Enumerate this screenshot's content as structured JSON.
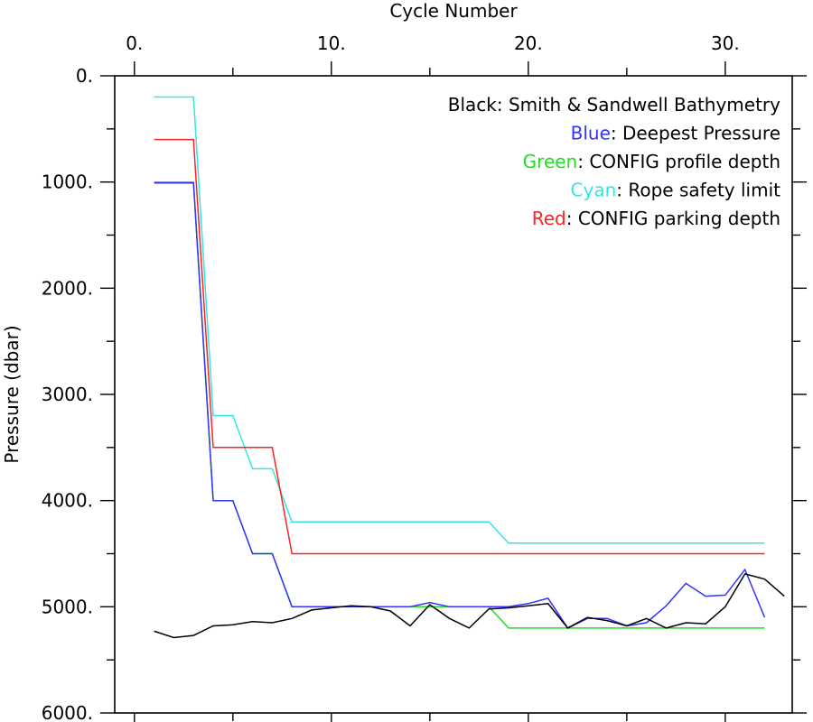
{
  "chart_data": {
    "type": "line",
    "xlabel": "Cycle Number",
    "ylabel": "Pressure (dbar)",
    "xlim": [
      -1.0,
      33.4
    ],
    "ylim": [
      6000,
      0
    ],
    "y_inverted": true,
    "x_axis_position": "top",
    "x_ticks": [
      0,
      10,
      20,
      30
    ],
    "x_tick_labels": [
      "0.",
      "10.",
      "20.",
      "30."
    ],
    "x_minor_step": 5,
    "y_ticks": [
      0,
      1000,
      2000,
      3000,
      4000,
      5000,
      6000
    ],
    "y_tick_labels": [
      "0.",
      "1000.",
      "2000.",
      "3000.",
      "4000.",
      "5000.",
      "6000."
    ],
    "y_minor_step": 500,
    "grid": false,
    "legend_position": "top-right",
    "legend": [
      {
        "color_word": "Black",
        "rest": ": Smith & Sandwell Bathymetry",
        "color": "#000000"
      },
      {
        "color_word": "Blue",
        "rest": ": Deepest Pressure",
        "color": "#3333ff"
      },
      {
        "color_word": "Green",
        "rest": ": CONFIG profile depth",
        "color": "#22dd22"
      },
      {
        "color_word": "Cyan",
        "rest": ": Rope safety limit",
        "color": "#33e6e6"
      },
      {
        "color_word": "Red",
        "rest": ": CONFIG parking depth",
        "color": "#ff2222"
      }
    ],
    "series": [
      {
        "key": "cyan",
        "color": "#33e6e6",
        "x": [
          1,
          3,
          4,
          5,
          6,
          7,
          8,
          9,
          10,
          11,
          12,
          13,
          14,
          15,
          16,
          17,
          18,
          19,
          20,
          21,
          22,
          23,
          24,
          25,
          26,
          27,
          28,
          29,
          30,
          31,
          32
        ],
        "values": [
          200,
          200,
          3200,
          3200,
          3700,
          3700,
          4200,
          4200,
          4200,
          4200,
          4200,
          4200,
          4200,
          4200,
          4200,
          4200,
          4200,
          4400,
          4400,
          4400,
          4400,
          4400,
          4400,
          4400,
          4400,
          4400,
          4400,
          4400,
          4400,
          4400,
          4400
        ]
      },
      {
        "key": "red",
        "color": "#ff2222",
        "x": [
          1,
          3,
          4,
          5,
          6,
          7,
          8,
          9,
          10,
          11,
          12,
          13,
          14,
          15,
          16,
          17,
          18,
          19,
          20,
          21,
          22,
          23,
          24,
          25,
          26,
          27,
          28,
          29,
          30,
          31,
          32
        ],
        "values": [
          600,
          600,
          3500,
          3500,
          3500,
          3500,
          4500,
          4500,
          4500,
          4500,
          4500,
          4500,
          4500,
          4500,
          4500,
          4500,
          4500,
          4500,
          4500,
          4500,
          4500,
          4500,
          4500,
          4500,
          4500,
          4500,
          4500,
          4500,
          4500,
          4500,
          4500
        ]
      },
      {
        "key": "green",
        "color": "#22dd22",
        "x": [
          1,
          3,
          4,
          5,
          6,
          7,
          8,
          9,
          10,
          11,
          12,
          13,
          14,
          15,
          16,
          17,
          18,
          19,
          20,
          21,
          22,
          23,
          24,
          25,
          26,
          27,
          28,
          29,
          30,
          31,
          32
        ],
        "values": [
          1000,
          1000,
          4000,
          4000,
          4500,
          4500,
          5000,
          5000,
          5000,
          5000,
          5000,
          5000,
          5000,
          5000,
          5000,
          5000,
          5000,
          5200,
          5200,
          5200,
          5200,
          5200,
          5200,
          5200,
          5200,
          5200,
          5200,
          5200,
          5200,
          5200,
          5200
        ]
      },
      {
        "key": "blue",
        "color": "#3333ff",
        "x": [
          1,
          3,
          4,
          5,
          6,
          7,
          8,
          9,
          10,
          11,
          12,
          13,
          14,
          15,
          16,
          17,
          18,
          19,
          20,
          21,
          22,
          23,
          24,
          25,
          26,
          27,
          28,
          29,
          30,
          31,
          32
        ],
        "values": [
          1010,
          1010,
          4000,
          4000,
          4500,
          4500,
          5000,
          5000,
          5000,
          5000,
          5000,
          5000,
          5000,
          4960,
          5000,
          5000,
          5000,
          5000,
          4970,
          4920,
          5200,
          5110,
          5110,
          5180,
          5150,
          4990,
          4780,
          4900,
          4890,
          4650,
          5100
        ]
      },
      {
        "key": "black",
        "color": "#000000",
        "x": [
          1,
          2,
          3,
          4,
          5,
          6,
          7,
          8,
          9,
          10,
          11,
          12,
          13,
          14,
          15,
          16,
          17,
          18,
          19,
          20,
          21,
          22,
          23,
          24,
          25,
          26,
          27,
          28,
          29,
          30,
          31,
          32,
          33
        ],
        "values": [
          5230,
          5290,
          5270,
          5180,
          5170,
          5140,
          5150,
          5110,
          5030,
          5010,
          4990,
          5000,
          5040,
          5180,
          4980,
          5110,
          5200,
          5020,
          5010,
          4990,
          4970,
          5200,
          5100,
          5130,
          5180,
          5110,
          5200,
          5150,
          5160,
          5000,
          4690,
          4740,
          4900
        ]
      }
    ]
  }
}
